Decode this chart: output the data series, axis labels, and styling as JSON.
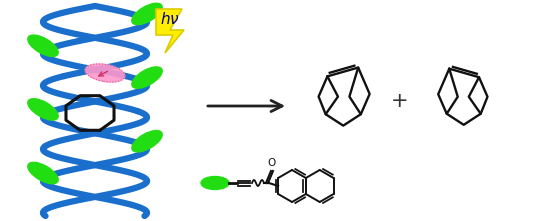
{
  "bg_color": "#ffffff",
  "helix_color": "#1a6fcc",
  "helix_lw": 4.5,
  "green_color": "#22dd11",
  "pink_color": "#ff99cc",
  "black_color": "#111111",
  "arrow_color": "#222222",
  "lightning_fill": "#ffee00",
  "lightning_edge": "#ddcc00",
  "hv_color": "#000088",
  "plus_color": "#333333"
}
